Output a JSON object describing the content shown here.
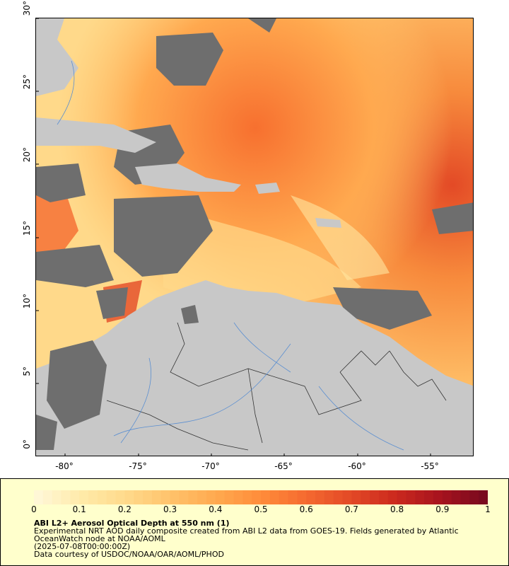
{
  "map": {
    "lat_labels": [
      "30°",
      "25°",
      "20°",
      "15°",
      "10°",
      "5°",
      "0°"
    ],
    "lon_labels": [
      "-80°",
      "-75°",
      "-70°",
      "-65°",
      "-60°",
      "-55°"
    ],
    "lat_range": [
      0,
      30
    ],
    "lon_range": [
      -82,
      -52
    ]
  },
  "legend": {
    "ticks": [
      "0",
      "0.1",
      "0.2",
      "0.3",
      "0.4",
      "0.5",
      "0.6",
      "0.7",
      "0.8",
      "0.9",
      "1"
    ],
    "colors": [
      "#fff7d6",
      "#ffeaa8",
      "#ffd98a",
      "#ffc26a",
      "#ffa94f",
      "#ff8c3a",
      "#f56a30",
      "#e34a26",
      "#cc2a1e",
      "#a8141e",
      "#7a0a1e"
    ],
    "title": "ABI L2+ Aerosol Optical Depth at 550 nm (1)",
    "line1": "Experimental NRT AOD daily composite created from ABI L2 data from GOES-19. Fields generated by Atlantic",
    "line2": "OceanWatch node at NOAA/AOML",
    "line3": "(2025-07-08T00:00:00Z)",
    "line4": "Data courtesy of USDOC/NOAA/OAR/AOML/PHOD"
  },
  "colors": {
    "land": "#c8c8c8",
    "missing": "#6e6e6e",
    "river": "#5b8fd1",
    "border": "#333333",
    "legend_bg": "#ffffcc"
  }
}
